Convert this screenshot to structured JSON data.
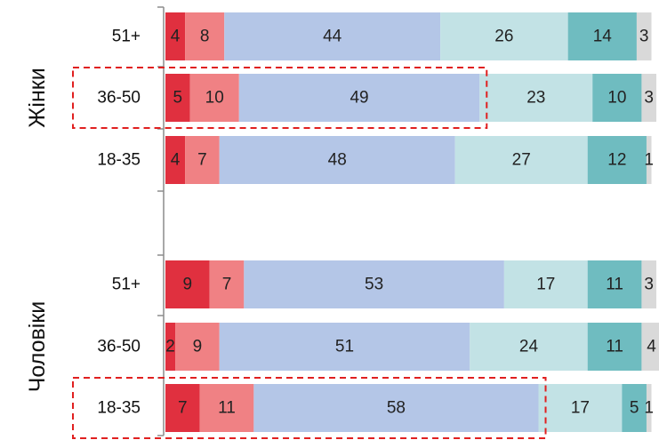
{
  "chart_data": {
    "type": "bar",
    "orientation": "horizontal",
    "stacked": true,
    "groups": [
      {
        "label": "Жінки",
        "rows": [
          {
            "category": "51+",
            "values": [
              4,
              8,
              44,
              26,
              14,
              3
            ],
            "highlighted": false
          },
          {
            "category": "36-50",
            "values": [
              5,
              10,
              49,
              23,
              10,
              3
            ],
            "highlighted": true
          },
          {
            "category": "18-35",
            "values": [
              4,
              7,
              48,
              27,
              12,
              1
            ],
            "highlighted": false
          }
        ]
      },
      {
        "label": "Чоловіки",
        "rows": [
          {
            "category": "51+",
            "values": [
              9,
              7,
              53,
              17,
              11,
              3
            ],
            "highlighted": false
          },
          {
            "category": "36-50",
            "values": [
              2,
              9,
              51,
              24,
              11,
              4
            ],
            "highlighted": false
          },
          {
            "category": "18-35",
            "values": [
              7,
              11,
              58,
              17,
              5,
              1
            ],
            "highlighted": true
          }
        ]
      }
    ],
    "segment_colors": [
      "#e0303f",
      "#f08184",
      "#b4c6e7",
      "#c2e2e5",
      "#6fbcc0",
      "#d9d9d9"
    ],
    "highlight_color": "#e02020",
    "grid": false,
    "legend": "none"
  }
}
